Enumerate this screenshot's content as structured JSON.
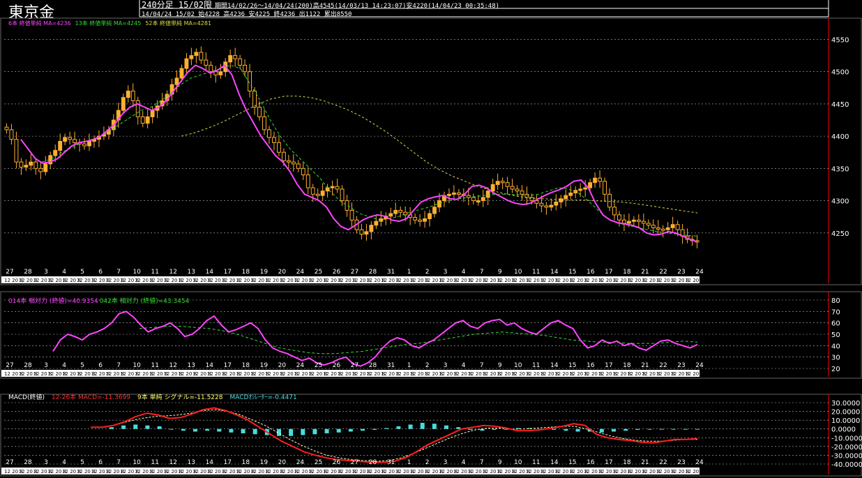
{
  "header": {
    "instrument": "東京金",
    "timeframe": "240分足 15/02限",
    "period_info": "期間14/02/26～14/04/24(200)高4545(14/03/13 14:23:07)安4220(14/04/23 00:35:48)",
    "last_bar": "14/04/24 15/02 始4228 高4236 安4225 終4236 出1122 累出8550"
  },
  "colors": {
    "background": "#000000",
    "candle": "#ffb030",
    "ma6": "#ff44ff",
    "ma13": "#33dd33",
    "ma52": "#dddd44",
    "rsi14": "#ff44ff",
    "rsi42": "#33dd33",
    "macd": "#ff2020",
    "signal": "#ffffcc",
    "osc": "#44dddd",
    "grid": "#bbbbbb",
    "axis": "#ff0000"
  },
  "legends": {
    "price": [
      {
        "text": "6本 終値単純 MA=4236",
        "color": "#ff44ff"
      },
      {
        "text": "13本 終値単純 MA=4245",
        "color": "#33dd33"
      },
      {
        "text": "52本 終値単純 MA=4281",
        "color": "#dddd44"
      }
    ],
    "rsi": [
      {
        "text": "014本 相対力 (終値)=40.9354",
        "color": "#ff44ff"
      },
      {
        "text": "042本 相対力 (終値)=43.3454",
        "color": "#33dd33"
      }
    ],
    "macd": [
      {
        "text": "MACD(終値)",
        "color": "#ffffff"
      },
      {
        "text": "12-26本 MACD=-11.3699",
        "color": "#ff3030"
      },
      {
        "text": "9本 単純 シグナル=-11.5228",
        "color": "#ffff66"
      },
      {
        "text": "MACDｵｼﾚｰﾀｰ=-0.4471",
        "color": "#44dddd"
      }
    ]
  },
  "x_axis": {
    "date_labels": [
      "27",
      "28",
      "3",
      "4",
      "5",
      "6",
      "7",
      "10",
      "11",
      "12",
      "13",
      "14",
      "17",
      "18",
      "19",
      "20",
      "24",
      "25",
      "26",
      "27",
      "28",
      "31",
      "1",
      "2",
      "3",
      "4",
      "7",
      "9",
      "10",
      "11",
      "14",
      "15",
      "16",
      "17",
      "18",
      "21",
      "22",
      "23",
      "24"
    ],
    "sub_label": "12 20 8"
  },
  "chart_data": [
    {
      "type": "candlestick",
      "title": "",
      "ylim": [
        4200,
        4570
      ],
      "yticks": [
        4250,
        4300,
        4350,
        4400,
        4450,
        4500,
        4550
      ],
      "grid": true,
      "close": [
        4410,
        4395,
        4360,
        4352,
        4355,
        4360,
        4350,
        4345,
        4357,
        4370,
        4378,
        4392,
        4398,
        4395,
        4390,
        4388,
        4385,
        4392,
        4395,
        4400,
        4403,
        4410,
        4425,
        4440,
        4460,
        4470,
        4455,
        4430,
        4420,
        4430,
        4440,
        4447,
        4455,
        4465,
        4480,
        4490,
        4505,
        4520,
        4525,
        4530,
        4518,
        4510,
        4500,
        4495,
        4500,
        4515,
        4525,
        4520,
        4510,
        4500,
        4470,
        4445,
        4430,
        4410,
        4398,
        4390,
        4375,
        4362,
        4360,
        4357,
        4350,
        4340,
        4320,
        4310,
        4308,
        4315,
        4320,
        4322,
        4318,
        4300,
        4285,
        4270,
        4255,
        4248,
        4252,
        4262,
        4268,
        4272,
        4276,
        4280,
        4285,
        4282,
        4278,
        4274,
        4270,
        4268,
        4272,
        4280,
        4290,
        4300,
        4308,
        4310,
        4312,
        4310,
        4308,
        4305,
        4300,
        4300,
        4305,
        4315,
        4325,
        4330,
        4328,
        4322,
        4318,
        4315,
        4310,
        4305,
        4300,
        4296,
        4292,
        4290,
        4293,
        4298,
        4303,
        4308,
        4312,
        4316,
        4318,
        4320,
        4328,
        4335,
        4330,
        4310,
        4290,
        4278,
        4270,
        4265,
        4268,
        4270,
        4268,
        4265,
        4262,
        4258,
        4256,
        4255,
        4258,
        4263,
        4255,
        4245,
        4240,
        4238,
        4236
      ],
      "ma_short": [
        4395,
        4380,
        4365,
        4358,
        4360,
        4365,
        4375,
        4385,
        4390,
        4392,
        4395,
        4400,
        4410,
        4420,
        4435,
        4445,
        4450,
        4445,
        4440,
        4445,
        4455,
        4470,
        4485,
        4500,
        4510,
        4505,
        4498,
        4502,
        4510,
        4495,
        4465,
        4440,
        4420,
        4400,
        4385,
        4370,
        4360,
        4345,
        4325,
        4310,
        4305,
        4300,
        4290,
        4272,
        4260,
        4255,
        4262,
        4270,
        4275,
        4278,
        4276,
        4270,
        4268,
        4272,
        4285,
        4298,
        4303,
        4306,
        4308,
        4303,
        4302,
        4310,
        4322,
        4324,
        4320,
        4312,
        4306,
        4300,
        4296,
        4294,
        4296,
        4302,
        4308,
        4313,
        4317,
        4322,
        4330,
        4332,
        4320,
        4296,
        4278,
        4270,
        4266,
        4264,
        4262,
        4258,
        4250,
        4247,
        4248,
        4252,
        4250,
        4245,
        4240,
        4236
      ],
      "ma_mid": [
        4360,
        4365,
        4375,
        4382,
        4390,
        4395,
        4400,
        4410,
        4420,
        4430,
        4440,
        4445,
        4455,
        4468,
        4480,
        4490,
        4495,
        4500,
        4505,
        4510,
        4505,
        4480,
        4455,
        4425,
        4400,
        4380,
        4365,
        4350,
        4335,
        4315,
        4300,
        4290,
        4280,
        4275,
        4270,
        4272,
        4276,
        4282,
        4286,
        4290,
        4296,
        4300,
        4303,
        4305,
        4307,
        4309,
        4310,
        4310,
        4309,
        4308,
        4310,
        4315,
        4320,
        4318,
        4312,
        4300,
        4285,
        4272,
        4265,
        4262,
        4258,
        4255,
        4252,
        4250,
        4248,
        4246,
        4245
      ],
      "ma_long": [
        4400,
        4405,
        4412,
        4420,
        4430,
        4440,
        4450,
        4458,
        4462,
        4462,
        4460,
        4455,
        4448,
        4440,
        4430,
        4418,
        4405,
        4390,
        4375,
        4360,
        4348,
        4338,
        4330,
        4322,
        4316,
        4311,
        4307,
        4304,
        4303,
        4302,
        4301,
        4301,
        4300,
        4299,
        4298,
        4296,
        4293,
        4290,
        4287,
        4284,
        4281
      ]
    },
    {
      "type": "line",
      "title": "",
      "ylim": [
        20,
        80
      ],
      "yticks": [
        20,
        30,
        40,
        50,
        60,
        70,
        80
      ],
      "grid": true,
      "series": [
        {
          "name": "014本 相対力 (終値)",
          "values": [
            35,
            45,
            50,
            48,
            45,
            50,
            52,
            55,
            60,
            68,
            70,
            65,
            58,
            52,
            55,
            57,
            60,
            55,
            48,
            50,
            55,
            62,
            66,
            58,
            52,
            54,
            57,
            60,
            55,
            45,
            38,
            35,
            33,
            30,
            27,
            29,
            25,
            23,
            25,
            28,
            30,
            24,
            22,
            25,
            30,
            38,
            44,
            47,
            45,
            40,
            38,
            42,
            45,
            50,
            55,
            60,
            62,
            57,
            55,
            60,
            62,
            63,
            58,
            60,
            55,
            52,
            50,
            55,
            60,
            62,
            58,
            55,
            45,
            38,
            40,
            45,
            42,
            44,
            40,
            42,
            38,
            36,
            40,
            44,
            45,
            42,
            40,
            38,
            41
          ]
        },
        {
          "name": "042本 相対力 (終値)",
          "values": [
            55,
            56,
            57,
            57,
            56,
            55,
            53,
            50,
            46,
            42,
            38,
            36,
            34,
            33,
            33,
            34,
            35,
            37,
            39,
            41,
            42,
            44,
            46,
            48,
            50,
            51,
            52,
            51,
            50,
            49,
            47,
            45,
            44,
            43,
            43,
            42,
            42,
            42,
            43,
            44,
            43
          ]
        }
      ]
    },
    {
      "type": "line",
      "title": "",
      "ylim": [
        -40,
        30
      ],
      "yticks": [
        30.0,
        20.0,
        10.0,
        0.0,
        -10.0,
        -20.0,
        -30.0,
        -40.0
      ],
      "grid": true,
      "series": [
        {
          "name": "12-26本 MACD",
          "values": [
            2,
            2,
            4,
            8,
            14,
            18,
            16,
            12,
            13,
            17,
            22,
            24,
            21,
            16,
            10,
            2,
            -6,
            -14,
            -20,
            -26,
            -30,
            -33,
            -35,
            -36,
            -37,
            -38,
            -38,
            -37,
            -33,
            -26,
            -18,
            -12,
            -6,
            0,
            2,
            4,
            3,
            1,
            -2,
            -2,
            -1,
            1,
            3,
            6,
            4,
            -6,
            -10,
            -12,
            -13,
            -15,
            -16,
            -14,
            -12,
            -12,
            -11
          ]
        },
        {
          "name": "9本 単純 シグナル",
          "values": [
            2,
            5,
            9,
            12,
            14,
            15,
            16,
            18,
            21,
            22,
            20,
            16,
            10,
            4,
            -4,
            -12,
            -19,
            -25,
            -30,
            -33,
            -35,
            -36,
            -37,
            -36,
            -33,
            -28,
            -22,
            -16,
            -10,
            -5,
            -1,
            1,
            1,
            0,
            0,
            1,
            2,
            3,
            3,
            0,
            -4,
            -8,
            -11,
            -13,
            -14,
            -14,
            -13,
            -12,
            -12
          ]
        },
        {
          "name": "MACDｵｼﾚｰﾀｰ",
          "values": [
            2,
            4,
            5,
            4,
            3,
            0,
            -2,
            -3,
            -2,
            -3,
            -4,
            -5,
            -6,
            -7,
            -8,
            -8,
            -7,
            -6,
            -5,
            -4,
            -3,
            -2,
            -1,
            1,
            3,
            5,
            7,
            6,
            4,
            2,
            -1,
            -2,
            -1,
            0,
            1,
            1,
            0,
            -1,
            -2,
            -3,
            -3,
            -4,
            -3,
            -2,
            -1,
            0,
            0,
            0,
            0,
            0
          ]
        }
      ]
    }
  ]
}
